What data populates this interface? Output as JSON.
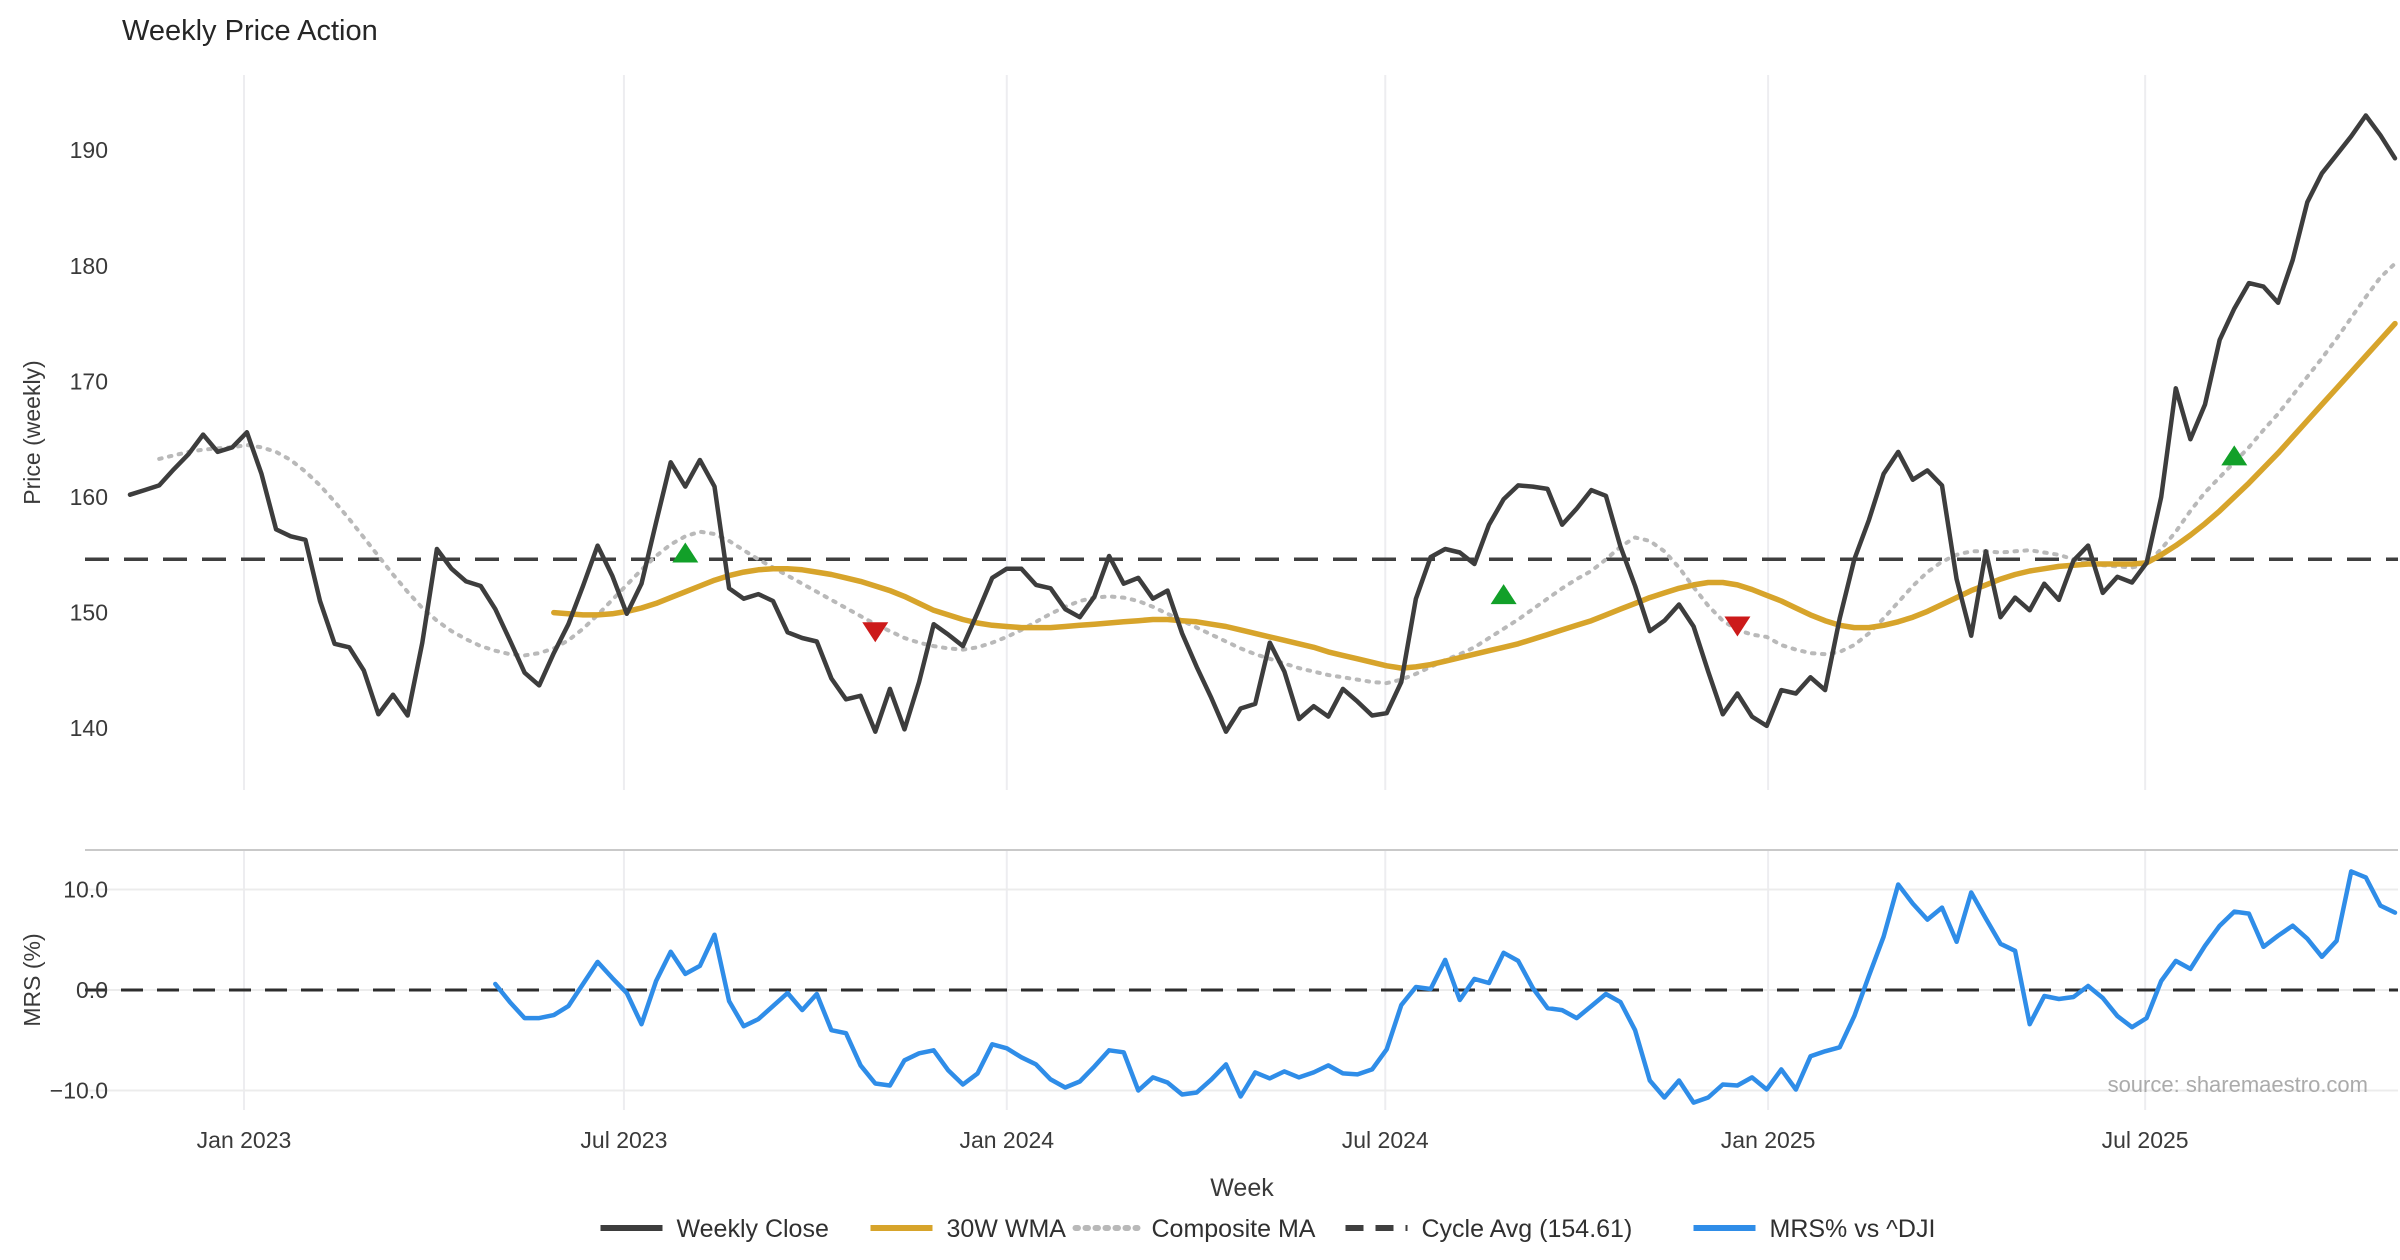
{
  "title": "Weekly Price Action",
  "source_note": "source: sharemaestro.com",
  "x_axis": {
    "label": "Week",
    "weeks_total": 156,
    "ticks": [
      {
        "label": "Jan 2023",
        "week": 7.8
      },
      {
        "label": "Jul 2023",
        "week": 33.8
      },
      {
        "label": "Jan 2024",
        "week": 60.0
      },
      {
        "label": "Jul 2024",
        "week": 85.9
      },
      {
        "label": "Jan 2025",
        "week": 112.1
      },
      {
        "label": "Jul 2025",
        "week": 137.9
      }
    ]
  },
  "legend": [
    {
      "label": "Weekly Close",
      "swatch": "line",
      "color": "#3d3d3d"
    },
    {
      "label": "30W WMA",
      "swatch": "line",
      "color": "#d7a42b"
    },
    {
      "label": "Composite MA",
      "swatch": "dotted",
      "color": "#b9b9b9"
    },
    {
      "label": "Cycle Avg (154.61)",
      "swatch": "dashed",
      "color": "#3f3f3f"
    },
    {
      "label": "MRS% vs ^DJI",
      "swatch": "line",
      "color": "#2f8de8"
    }
  ],
  "colors": {
    "close": "#3d3d3d",
    "wma": "#d7a42b",
    "composite": "#b9b9b9",
    "cycle": "#3f3f3f",
    "mrs": "#2f8de8",
    "buy_marker": "#12a029",
    "sell_marker": "#cc1a1a",
    "gridline": "#ededf0",
    "panel_border": "#c9c9c9",
    "tick_text": "#3a3a3a",
    "title_text": "#262626",
    "source_text": "#ababab"
  },
  "chart_data": [
    {
      "panel": "price",
      "type": "line",
      "title": "Weekly Price Action",
      "ylabel": "Price (weekly)",
      "yticks": [
        140,
        150,
        160,
        170,
        180,
        190
      ],
      "ylim": [
        134.7,
        196.5
      ],
      "cycle_avg": 154.61,
      "series": [
        {
          "name": "Weekly Close",
          "start_week": 0,
          "values": [
            160.2,
            160.6,
            161.0,
            162.4,
            163.7,
            165.4,
            163.9,
            164.3,
            165.6,
            162.0,
            157.2,
            156.6,
            156.3,
            151.0,
            147.3,
            147.0,
            145.0,
            141.2,
            142.9,
            141.1,
            147.4,
            155.5,
            153.8,
            152.7,
            152.3,
            150.3,
            147.6,
            144.8,
            143.7,
            146.5,
            149.0,
            152.3,
            155.8,
            153.2,
            149.9,
            152.5,
            157.8,
            163.0,
            160.9,
            163.2,
            160.9,
            152.1,
            151.2,
            151.6,
            151.0,
            148.3,
            147.8,
            147.5,
            144.3,
            142.5,
            142.8,
            139.7,
            143.4,
            139.9,
            144.0,
            149.0,
            148.1,
            147.1,
            150.0,
            153.0,
            153.8,
            153.8,
            152.4,
            152.1,
            150.3,
            149.6,
            151.4,
            154.9,
            152.5,
            153.0,
            151.2,
            151.9,
            148.2,
            145.3,
            142.6,
            139.7,
            141.7,
            142.1,
            147.4,
            144.9,
            140.8,
            141.9,
            141.0,
            143.4,
            142.3,
            141.1,
            141.3,
            144.0,
            151.2,
            154.8,
            155.5,
            155.2,
            154.2,
            157.6,
            159.8,
            161.0,
            160.9,
            160.7,
            157.6,
            159.0,
            160.6,
            160.1,
            155.7,
            152.3,
            148.4,
            149.3,
            150.7,
            148.8,
            144.9,
            141.2,
            143.0,
            141.0,
            140.2,
            143.3,
            143.0,
            144.4,
            143.3,
            149.5,
            154.6,
            158.0,
            162.0,
            163.9,
            161.5,
            162.3,
            161.0,
            152.9,
            148.0,
            155.3,
            149.6,
            151.3,
            150.2,
            152.5,
            151.1,
            154.5,
            155.8,
            151.7,
            153.1,
            152.6,
            154.3,
            160.0,
            169.4,
            165.0,
            168.0,
            173.6,
            176.3,
            178.5,
            178.2,
            176.8,
            180.5,
            185.5,
            188.0,
            189.6,
            191.2,
            193.0,
            191.3,
            189.3
          ]
        },
        {
          "name": "30W WMA",
          "start_week": 29,
          "values": [
            150.0,
            149.9,
            149.8,
            149.8,
            149.9,
            150.1,
            150.4,
            150.8,
            151.3,
            151.8,
            152.3,
            152.8,
            153.2,
            153.5,
            153.7,
            153.8,
            153.8,
            153.7,
            153.5,
            153.3,
            153.0,
            152.7,
            152.3,
            151.9,
            151.4,
            150.8,
            150.2,
            149.8,
            149.4,
            149.1,
            148.9,
            148.8,
            148.7,
            148.7,
            148.7,
            148.8,
            148.9,
            149.0,
            149.1,
            149.2,
            149.3,
            149.4,
            149.4,
            149.3,
            149.2,
            149.0,
            148.8,
            148.5,
            148.2,
            147.9,
            147.6,
            147.3,
            147.0,
            146.6,
            146.3,
            146.0,
            145.7,
            145.4,
            145.2,
            145.3,
            145.5,
            145.8,
            146.1,
            146.4,
            146.7,
            147.0,
            147.3,
            147.7,
            148.1,
            148.5,
            148.9,
            149.3,
            149.8,
            150.3,
            150.8,
            151.3,
            151.7,
            152.1,
            152.4,
            152.6,
            152.6,
            152.4,
            152.0,
            151.5,
            151.0,
            150.4,
            149.8,
            149.3,
            148.9,
            148.7,
            148.7,
            148.9,
            149.2,
            149.6,
            150.1,
            150.7,
            151.3,
            151.9,
            152.4,
            152.9,
            153.3,
            153.6,
            153.8,
            154.0,
            154.1,
            154.2,
            154.2,
            154.2,
            154.2,
            154.3,
            155.0,
            155.8,
            156.7,
            157.7,
            158.8,
            160.0,
            161.2,
            162.5,
            163.8,
            165.2,
            166.6,
            168.0,
            169.4,
            170.8,
            172.2,
            173.6,
            175.0
          ]
        },
        {
          "name": "Composite MA",
          "start_week": 2,
          "values": [
            163.3,
            163.6,
            163.9,
            164.1,
            164.2,
            164.3,
            164.5,
            164.3,
            163.9,
            163.2,
            162.2,
            161.0,
            159.6,
            158.1,
            156.5,
            154.9,
            153.3,
            151.8,
            150.4,
            149.3,
            148.4,
            147.7,
            147.1,
            146.7,
            146.4,
            146.3,
            146.5,
            146.9,
            147.6,
            148.6,
            149.8,
            151.1,
            152.4,
            153.7,
            154.9,
            155.9,
            156.6,
            157.0,
            156.8,
            156.2,
            155.4,
            154.6,
            153.9,
            153.2,
            152.5,
            151.8,
            151.1,
            150.4,
            149.7,
            149.0,
            148.4,
            147.8,
            147.4,
            147.1,
            146.9,
            146.8,
            147.0,
            147.4,
            147.9,
            148.5,
            149.2,
            149.9,
            150.5,
            151.0,
            151.3,
            151.4,
            151.3,
            151.0,
            150.5,
            149.9,
            149.3,
            148.7,
            148.1,
            147.5,
            146.9,
            146.4,
            146.0,
            145.6,
            145.2,
            144.9,
            144.6,
            144.4,
            144.2,
            144.0,
            143.9,
            144.2,
            144.7,
            145.3,
            145.9,
            146.4,
            147.0,
            147.8,
            148.6,
            149.4,
            150.3,
            151.2,
            152.1,
            152.9,
            153.6,
            154.6,
            155.7,
            156.5,
            156.2,
            155.3,
            153.9,
            152.2,
            150.6,
            149.3,
            148.5,
            148.1,
            147.9,
            147.2,
            146.8,
            146.5,
            146.4,
            146.6,
            147.2,
            148.2,
            149.5,
            150.9,
            152.3,
            153.5,
            154.4,
            155.0,
            155.3,
            155.3,
            155.2,
            155.3,
            155.4,
            155.2,
            155.0,
            154.6,
            154.3,
            154.1,
            154.0,
            153.9,
            154.2,
            155.5,
            157.0,
            158.8,
            160.4,
            161.7,
            163.0,
            164.3,
            165.8,
            167.2,
            168.8,
            170.4,
            172.0,
            173.7,
            175.5,
            177.3,
            179.0,
            180.2
          ]
        }
      ],
      "markers": {
        "buy": [
          {
            "week": 38,
            "value": 155.2
          },
          {
            "week": 94,
            "value": 151.6
          },
          {
            "week": 144,
            "value": 163.6
          }
        ],
        "sell": [
          {
            "week": 51,
            "value": 148.3
          },
          {
            "week": 110,
            "value": 148.8
          }
        ]
      }
    },
    {
      "panel": "mrs",
      "type": "line",
      "ylabel": "MRS (%)",
      "yticks": [
        10.0,
        0.0,
        -10.0
      ],
      "ytick_labels": [
        "10.0",
        "0.0",
        "−10.0"
      ],
      "ylim": [
        -11.9,
        13.9
      ],
      "zero_line": 0,
      "series": [
        {
          "name": "MRS% vs ^DJI",
          "start_week": 25,
          "values": [
            0.6,
            -1.2,
            -2.8,
            -2.8,
            -2.5,
            -1.6,
            0.6,
            2.8,
            1.2,
            -0.3,
            -3.4,
            0.9,
            3.8,
            1.6,
            2.4,
            5.5,
            -1.1,
            -3.6,
            -2.9,
            -1.6,
            -0.3,
            -2.0,
            -0.4,
            -4.0,
            -4.3,
            -7.5,
            -9.3,
            -9.5,
            -7.0,
            -6.3,
            -6.0,
            -8.0,
            -9.4,
            -8.3,
            -5.4,
            -5.8,
            -6.7,
            -7.4,
            -8.9,
            -9.7,
            -9.1,
            -7.6,
            -6.0,
            -6.2,
            -10.0,
            -8.7,
            -9.2,
            -10.4,
            -10.2,
            -8.9,
            -7.4,
            -10.6,
            -8.2,
            -8.8,
            -8.1,
            -8.7,
            -8.2,
            -7.5,
            -8.3,
            -8.4,
            -7.9,
            -5.9,
            -1.5,
            0.3,
            0.1,
            3.0,
            -1.0,
            1.1,
            0.7,
            3.7,
            2.9,
            0.2,
            -1.8,
            -2.0,
            -2.8,
            -1.6,
            -0.4,
            -1.2,
            -4.0,
            -9.0,
            -10.7,
            -9.0,
            -11.2,
            -10.7,
            -9.4,
            -9.5,
            -8.7,
            -9.9,
            -7.9,
            -9.9,
            -6.6,
            -6.1,
            -5.7,
            -2.6,
            1.4,
            5.3,
            10.5,
            8.6,
            7.0,
            8.2,
            4.8,
            9.7,
            7.1,
            4.6,
            3.9,
            -3.4,
            -0.6,
            -0.9,
            -0.7,
            0.4,
            -0.8,
            -2.6,
            -3.7,
            -2.8,
            0.9,
            2.9,
            2.1,
            4.4,
            6.4,
            7.8,
            7.6,
            4.3,
            5.4,
            6.4,
            5.1,
            3.3,
            4.9,
            11.8,
            11.2,
            8.4,
            7.7
          ]
        }
      ]
    }
  ]
}
